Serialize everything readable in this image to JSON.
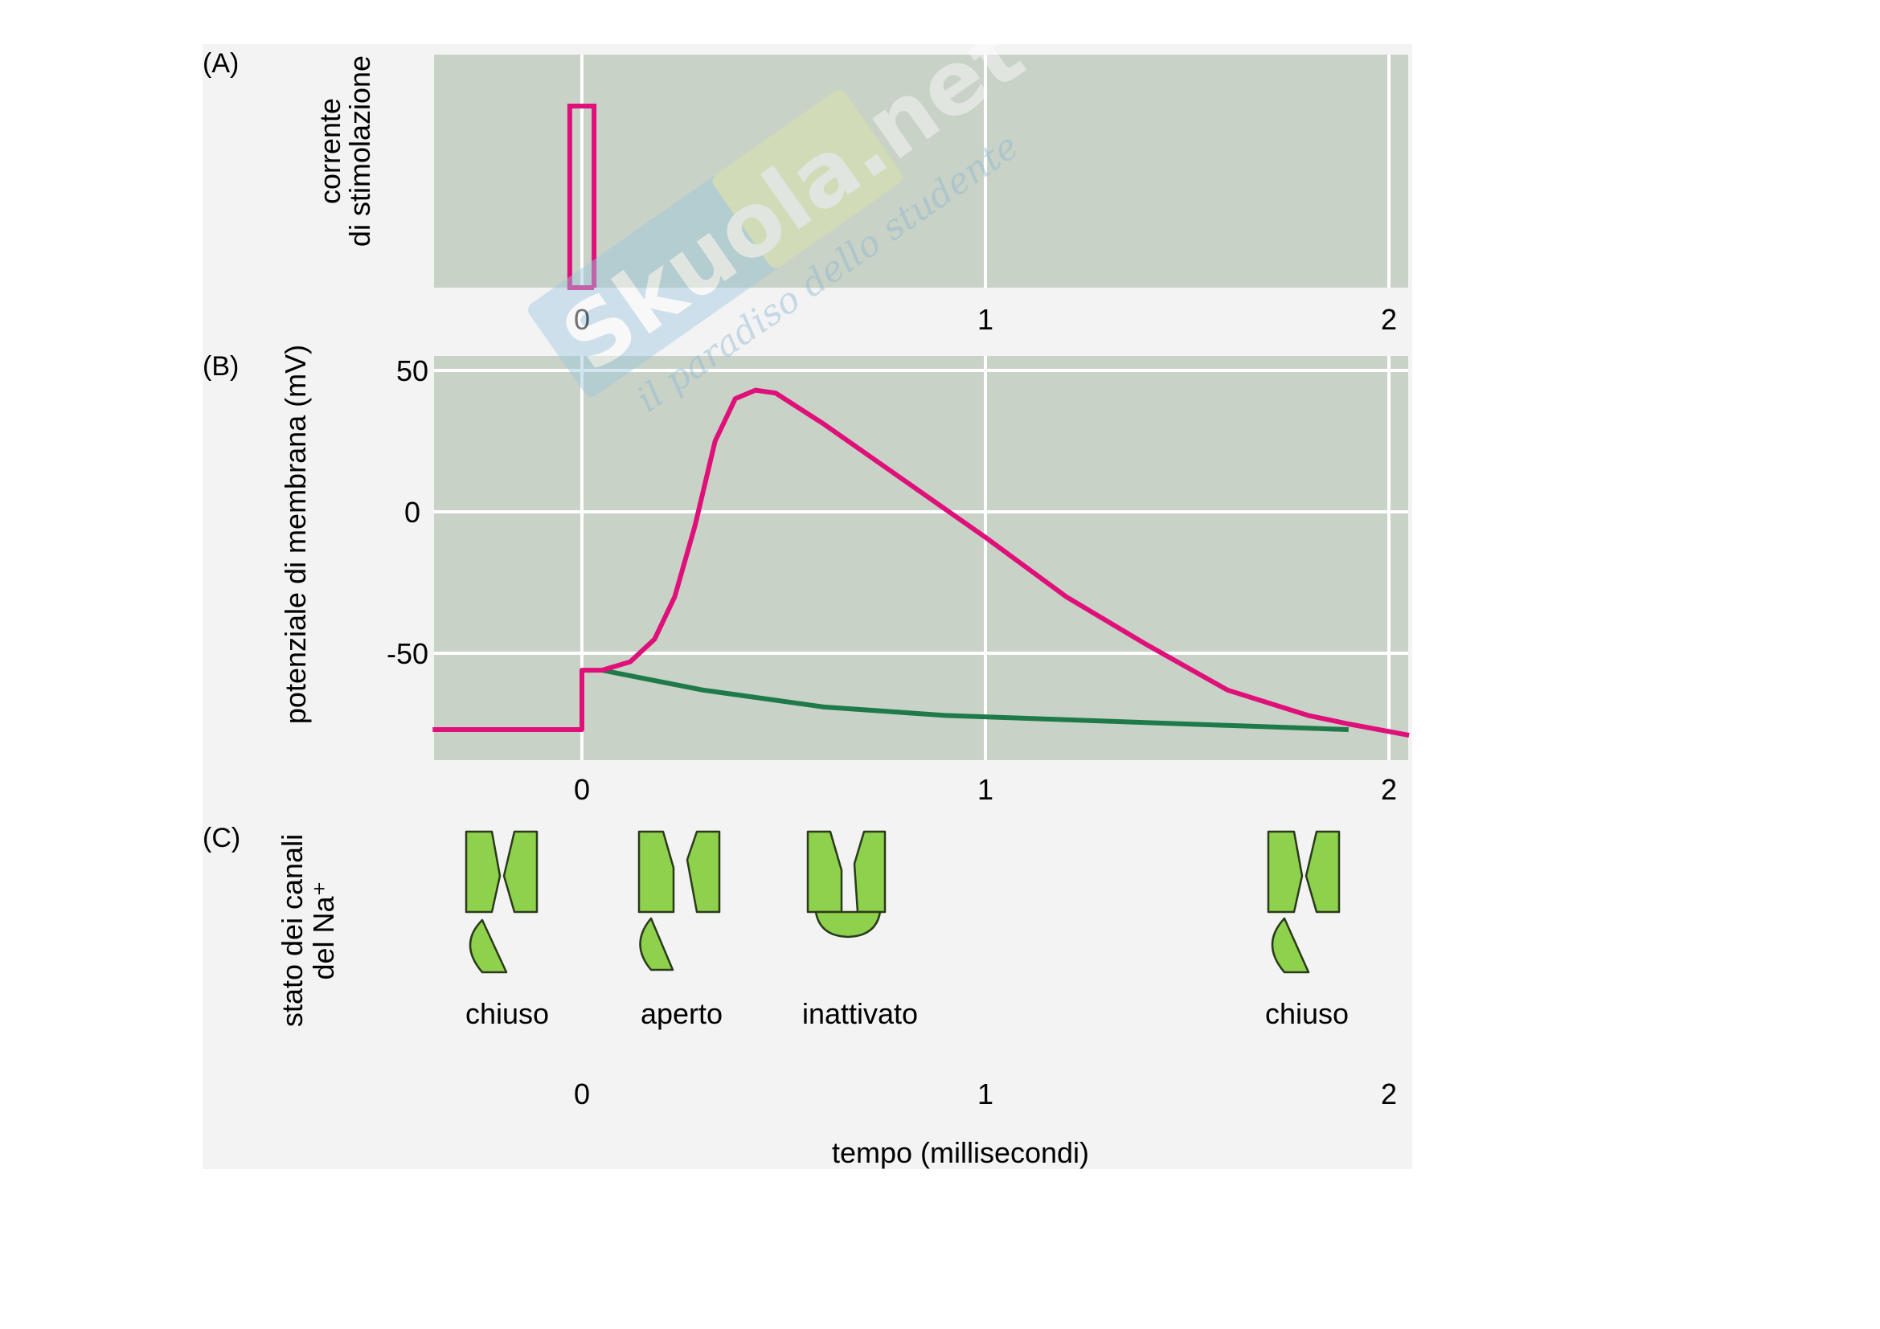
{
  "chart_data": [
    {
      "panel": "A",
      "type": "line",
      "ylabel_lines": [
        "corrente",
        "di stimolazione"
      ],
      "xlim": [
        -0.37,
        2.05
      ],
      "x_ticks": [
        "0",
        "1",
        "2"
      ],
      "grid": true,
      "series": [
        {
          "color": "#e0107a",
          "points": [
            [
              0.03,
              0
            ],
            [
              -0.03,
              0
            ],
            [
              -0.03,
              1
            ],
            [
              0.03,
              1
            ],
            [
              0.03,
              0
            ]
          ]
        }
      ]
    },
    {
      "panel": "B",
      "type": "line",
      "ylabel": "potenziale di membrana (mV)",
      "xlim": [
        -0.37,
        2.05
      ],
      "ylim": [
        -88,
        55
      ],
      "x_ticks": [
        "0",
        "1",
        "2"
      ],
      "y_ticks": [
        "50",
        "0",
        "-50"
      ],
      "grid": true,
      "series": [
        {
          "color": "#e0107a",
          "points": [
            [
              -0.37,
              -77
            ],
            [
              0,
              -77
            ],
            [
              0,
              -56
            ],
            [
              0.05,
              -56
            ],
            [
              0.12,
              -53
            ],
            [
              0.18,
              -45
            ],
            [
              0.23,
              -30
            ],
            [
              0.28,
              -5
            ],
            [
              0.33,
              25
            ],
            [
              0.38,
              40
            ],
            [
              0.43,
              43
            ],
            [
              0.48,
              42
            ],
            [
              0.6,
              31
            ],
            [
              0.8,
              11
            ],
            [
              1.0,
              -9
            ],
            [
              1.2,
              -30
            ],
            [
              1.4,
              -47
            ],
            [
              1.6,
              -63
            ],
            [
              1.8,
              -72
            ],
            [
              1.9,
              -75
            ],
            [
              2.05,
              -79
            ]
          ]
        },
        {
          "color": "#1f7a4a",
          "points": [
            [
              0.05,
              -56
            ],
            [
              0.3,
              -63
            ],
            [
              0.6,
              -69
            ],
            [
              0.9,
              -72
            ],
            [
              1.3,
              -74
            ],
            [
              1.6,
              -75.5
            ],
            [
              1.9,
              -77
            ]
          ]
        }
      ]
    },
    {
      "panel": "C",
      "type": "other",
      "ylabel_lines": [
        "stato dei canali",
        "del Na⁺"
      ],
      "x_ticks": [
        "0",
        "1",
        "2"
      ],
      "xlabel": "tempo (millisecondi)",
      "states": [
        {
          "label": "chiuso",
          "kind": "closed"
        },
        {
          "label": "aperto",
          "kind": "open"
        },
        {
          "label": "inattivato",
          "kind": "inactivated"
        },
        {
          "label": "chiuso",
          "kind": "closed"
        }
      ]
    }
  ],
  "panel_letters": [
    "(A)",
    "(B)",
    "(C)"
  ],
  "watermark": {
    "brand": "Skuola.net",
    "tagline": "il paradiso dello studente"
  },
  "colors": {
    "panel_bg": "#c8d2c6",
    "grid": "#ffffff",
    "stimulus": "#e0107a",
    "channel_fill": "#8ed14d",
    "green_trace": "#1f7a4a"
  }
}
